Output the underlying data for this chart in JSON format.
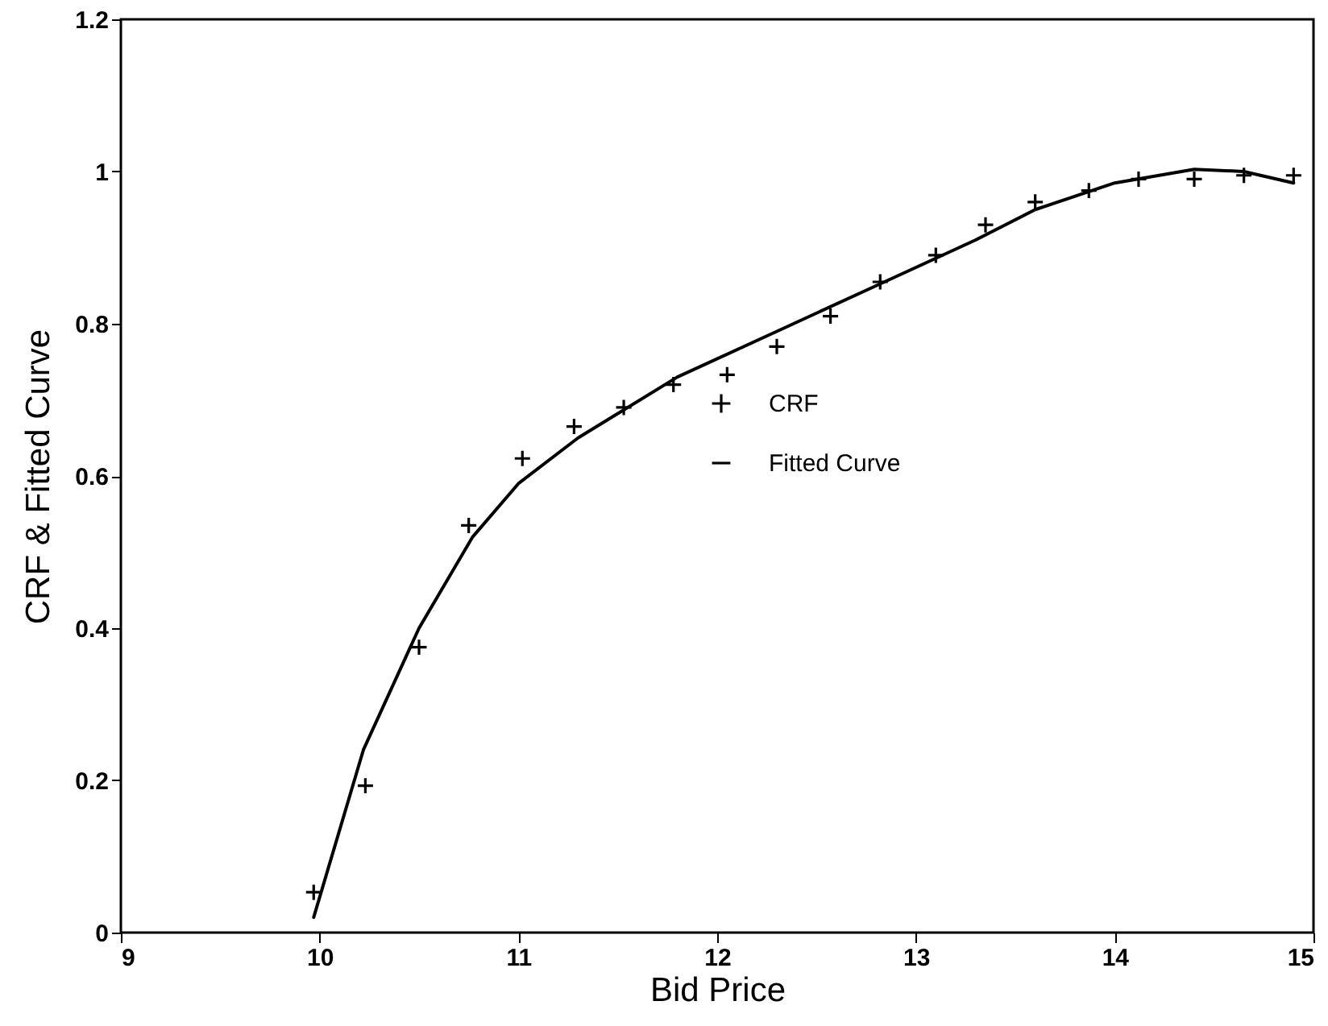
{
  "chart_data": {
    "type": "scatter",
    "xlabel": "Bid Price",
    "ylabel": "CRF & Fitted Curve",
    "xlim": [
      9,
      15
    ],
    "xticks": [
      9,
      10,
      11,
      12,
      13,
      14,
      15
    ],
    "ylim": [
      0,
      1.2
    ],
    "yticks": [
      0,
      0.2,
      0.4,
      0.6,
      0.8,
      1,
      1.2
    ],
    "series": [
      {
        "name": "CRF",
        "marker": "cross",
        "color": "#000000",
        "x": [
          9.97,
          10.23,
          10.5,
          10.75,
          11.02,
          11.28,
          11.53,
          11.78,
          12.05,
          12.3,
          12.57,
          12.82,
          13.1,
          13.35,
          13.6,
          13.87,
          14.12,
          14.4,
          14.65,
          14.9
        ],
        "values": [
          0.053,
          0.193,
          0.375,
          0.535,
          0.623,
          0.665,
          0.69,
          0.72,
          0.733,
          0.77,
          0.81,
          0.855,
          0.89,
          0.93,
          0.96,
          0.975,
          0.99,
          0.99,
          0.995,
          0.995
        ]
      },
      {
        "name": "Fitted Curve",
        "type": "line",
        "line_style": "solid",
        "color": "#000000",
        "x": [
          9.97,
          10.22,
          10.5,
          10.77,
          11.0,
          11.3,
          11.8,
          12.3,
          12.8,
          13.3,
          13.6,
          14.0,
          14.4,
          14.65,
          14.9
        ],
        "values": [
          0.02,
          0.24,
          0.4,
          0.52,
          0.59,
          0.65,
          0.73,
          0.79,
          0.85,
          0.91,
          0.95,
          0.985,
          1.003,
          1.0,
          0.985
        ]
      }
    ],
    "legend": "right",
    "grid": false
  }
}
